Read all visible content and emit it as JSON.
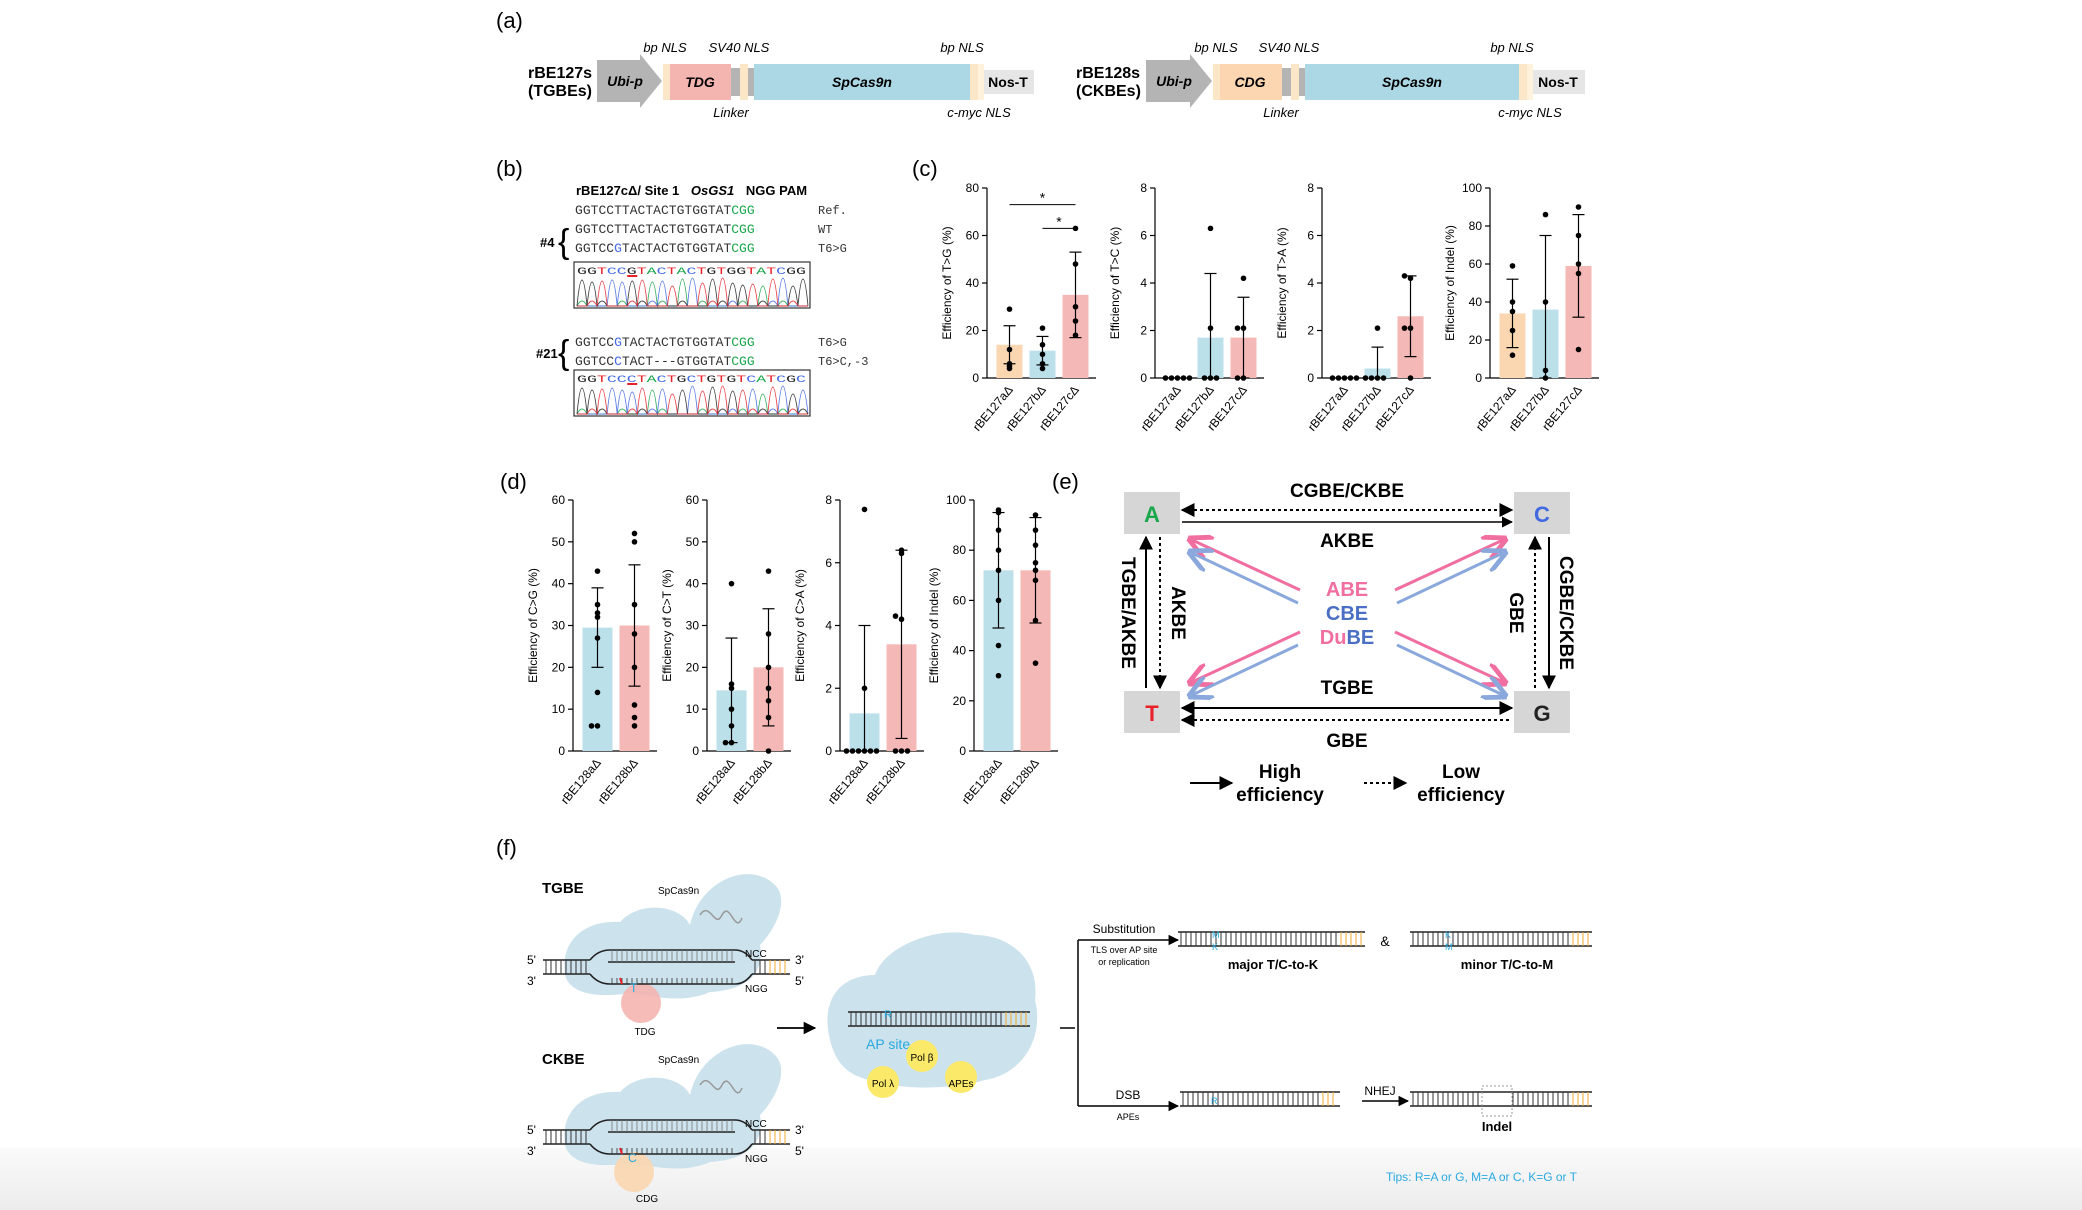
{
  "panels": {
    "a": "(a)",
    "b": "(b)",
    "c": "(c)",
    "d": "(d)",
    "e": "(e)",
    "f": "(f)"
  },
  "colors": {
    "tdg": "#f4b5b0",
    "cdg": "#fbd6b0",
    "cas9": "#acd8e6",
    "arrow_gray": "#b4b4b4",
    "nls": "#fce6c8",
    "linker": "#b4b4b4",
    "bar_orange": "#fad7b1",
    "bar_blue": "#bce0ea",
    "bar_pink": "#f4b8b6",
    "green": "#1aa64a",
    "blue": "#4169e1",
    "red": "#e8222a",
    "abe": "#f06ea0",
    "cbe": "#4a6fc4",
    "gray_box": "#d6d6d6",
    "tip": "#29a9e0"
  },
  "panel_a": {
    "constructs": [
      {
        "name_line1": "rBE127s",
        "name_line2": "(TGBEs)",
        "promoter": "Ubi-p",
        "enzyme": "TDG",
        "cas": "SpCas9n",
        "terminator": "Nos-T",
        "top_labels": [
          "bp NLS",
          "SV40 NLS",
          "bp NLS"
        ],
        "bottom_labels": [
          "Linker",
          "c-myc NLS"
        ]
      },
      {
        "name_line1": "rBE128s",
        "name_line2": "(CKBEs)",
        "promoter": "Ubi-p",
        "enzyme": "CDG",
        "cas": "SpCas9n",
        "terminator": "Nos-T",
        "top_labels": [
          "bp NLS",
          "SV40 NLS",
          "bp NLS"
        ],
        "bottom_labels": [
          "Linker",
          "c-myc NLS"
        ]
      }
    ]
  },
  "panel_b": {
    "header": "rBE127cΔ/ Site 1",
    "header_gene": "OsGS1",
    "header_pam": "NGG PAM",
    "clone4_label": "#4",
    "clone21_label": "#21",
    "seq_rows_4": [
      {
        "main": "GGTCCTTACTACTGTGGTAT",
        "pam": "CGG",
        "note": "Ref."
      },
      {
        "main": "GGTCCTTACTACTGTGGTAT",
        "pam": "CGG",
        "note": "WT"
      },
      {
        "main": "GGTCCGTACTACTGTGGTAT",
        "pam": "CGG",
        "note": "T6>G"
      }
    ],
    "seq_rows_21": [
      {
        "main": "GGTCCGTACTACTGTGGTAT",
        "pam": "CGG",
        "note": "T6>G"
      },
      {
        "main": "GGTCCCTACT---GTGGTAT",
        "pam": "CGG",
        "note": "T6>C,-3"
      }
    ],
    "chrom_4": "GGTCCGTACTACTGTGGTATCGG",
    "chrom_21": "GGTCCCTACTGCTGTGTCATCGC"
  },
  "chart_data": [
    {
      "type": "bar",
      "ylabel": "Efficiency of T>G (%)",
      "categories": [
        "rBE127aΔ",
        "rBE127bΔ",
        "rBE127cΔ"
      ],
      "values": [
        14,
        11.5,
        35
      ],
      "errors": [
        8,
        6,
        18
      ],
      "ylim": [
        0,
        80
      ],
      "yticks": [
        0,
        20,
        40,
        60,
        80
      ],
      "points": [
        [
          4,
          5,
          6,
          12,
          29
        ],
        [
          4,
          6,
          10,
          14,
          21
        ],
        [
          18,
          24,
          30,
          48,
          63
        ]
      ],
      "significance": [
        "*",
        "*"
      ]
    },
    {
      "type": "bar",
      "ylabel": "Efficiency of T>C (%)",
      "categories": [
        "rBE127aΔ",
        "rBE127bΔ",
        "rBE127cΔ"
      ],
      "values": [
        0,
        1.7,
        1.7
      ],
      "errors": [
        0,
        2.7,
        1.7
      ],
      "ylim": [
        0,
        8
      ],
      "yticks": [
        0,
        2,
        4,
        6,
        8
      ],
      "points": [
        [
          0,
          0,
          0,
          0,
          0
        ],
        [
          0,
          0,
          0,
          2.1,
          6.3
        ],
        [
          0,
          0,
          2.1,
          2.1,
          4.2
        ]
      ]
    },
    {
      "type": "bar",
      "ylabel": "Efficiency of T>A (%)",
      "categories": [
        "rBE127aΔ",
        "rBE127bΔ",
        "rBE127cΔ"
      ],
      "values": [
        0,
        0.4,
        2.6
      ],
      "errors": [
        0,
        0.9,
        1.7
      ],
      "ylim": [
        0,
        8
      ],
      "yticks": [
        0,
        2,
        4,
        6,
        8
      ],
      "points": [
        [
          0,
          0,
          0,
          0,
          0
        ],
        [
          0,
          0,
          0,
          0,
          2.1
        ],
        [
          0,
          2.1,
          2.1,
          4.2,
          4.3
        ]
      ]
    },
    {
      "type": "bar",
      "ylabel": "Efficiency of Indel (%)",
      "categories": [
        "rBE127aΔ",
        "rBE127bΔ",
        "rBE127cΔ"
      ],
      "values": [
        34,
        36,
        59
      ],
      "errors": [
        18,
        39,
        27
      ],
      "ylim": [
        0,
        100
      ],
      "yticks": [
        0,
        20,
        40,
        60,
        80,
        100
      ],
      "points": [
        [
          12,
          25,
          35,
          40,
          59
        ],
        [
          0,
          4,
          40,
          86
        ],
        [
          15,
          55,
          60,
          75,
          90
        ]
      ]
    },
    {
      "type": "bar",
      "ylabel": "Efficiency of C>G (%)",
      "categories": [
        "rBE128aΔ",
        "rBE128bΔ"
      ],
      "values": [
        29.5,
        30
      ],
      "errors": [
        9.5,
        14.5
      ],
      "ylim": [
        0,
        60
      ],
      "yticks": [
        0,
        10,
        20,
        30,
        40,
        50,
        60
      ],
      "points": [
        [
          6,
          6,
          14,
          27,
          32,
          33,
          35,
          43
        ],
        [
          6,
          8,
          11,
          20,
          28,
          35,
          50,
          52
        ]
      ]
    },
    {
      "type": "bar",
      "ylabel": "Efficiency of C>T (%)",
      "categories": [
        "rBE128aΔ",
        "rBE128bΔ"
      ],
      "values": [
        14.5,
        20
      ],
      "errors": [
        12.5,
        14
      ],
      "ylim": [
        0,
        60
      ],
      "yticks": [
        0,
        10,
        20,
        30,
        40,
        50,
        60
      ],
      "points": [
        [
          2,
          2,
          6,
          10,
          15,
          16,
          40
        ],
        [
          0,
          8,
          12,
          15,
          20,
          28,
          43
        ]
      ]
    },
    {
      "type": "bar",
      "ylabel": "Efficiency of C>A (%)",
      "categories": [
        "rBE128aΔ",
        "rBE128bΔ"
      ],
      "values": [
        1.2,
        3.4
      ],
      "errors": [
        2.8,
        3.0
      ],
      "ylim": [
        0,
        8
      ],
      "yticks": [
        0,
        2,
        4,
        6,
        8
      ],
      "points": [
        [
          0,
          0,
          0,
          0,
          0,
          0,
          2,
          7.7
        ],
        [
          0,
          0,
          0,
          4.2,
          4.3,
          6.3,
          6.4
        ]
      ]
    },
    {
      "type": "bar",
      "ylabel": "Efficiency of Indel (%)",
      "categories": [
        "rBE128aΔ",
        "rBE128bΔ"
      ],
      "values": [
        72,
        72
      ],
      "errors": [
        23,
        21
      ],
      "ylim": [
        0,
        100
      ],
      "yticks": [
        0,
        20,
        40,
        60,
        80,
        100
      ],
      "points": [
        [
          30,
          42,
          60,
          72,
          80,
          88,
          95,
          96
        ],
        [
          35,
          52,
          68,
          72,
          75,
          82,
          88,
          94
        ]
      ]
    }
  ],
  "panel_e": {
    "nodes": {
      "A": "A",
      "C": "C",
      "T": "T",
      "G": "G"
    },
    "labels": {
      "top": "CGBE/CKBE",
      "top_under": "AKBE",
      "left": "TGBE/AKBE",
      "left_inner": "AKBE",
      "right": "CGBE/CKBE",
      "right_inner": "GBE",
      "bottom_top": "TGBE",
      "bottom": "GBE"
    },
    "center": {
      "abe": "ABE",
      "cbe": "CBE",
      "dube_a": "Du",
      "dube_b": "BE"
    },
    "legend": {
      "high": "High efficiency",
      "high_l1": "High",
      "high_l2": "efficiency",
      "low_l1": "Low",
      "low_l2": "efficiency"
    }
  },
  "panel_f": {
    "tgbe": "TGBE",
    "ckbe": "CKBE",
    "cas": "SpCas9n",
    "tdg": "TDG",
    "cdg": "CDG",
    "t": "T",
    "c": "C",
    "r": "R",
    "ncc": "NCC",
    "ngg": "NGG",
    "p5": "5'",
    "p3": "3'",
    "ap_site": "AP site",
    "pol_beta": "Pol β",
    "pol_lambda": "Pol λ",
    "apes": "APEs",
    "substitution": "Substitution",
    "tls_l1": "TLS over AP site",
    "tls_l2": "or replication",
    "major": "major T/C-to-K",
    "minor": "minor T/C-to-M",
    "amp": "&",
    "dsb": "DSB",
    "apes2": "APEs",
    "nhej": "NHEJ",
    "indel": "Indel",
    "m": "M",
    "k": "K",
    "tips": "Tips: R=A or G, M=A or C, K=G or T"
  }
}
